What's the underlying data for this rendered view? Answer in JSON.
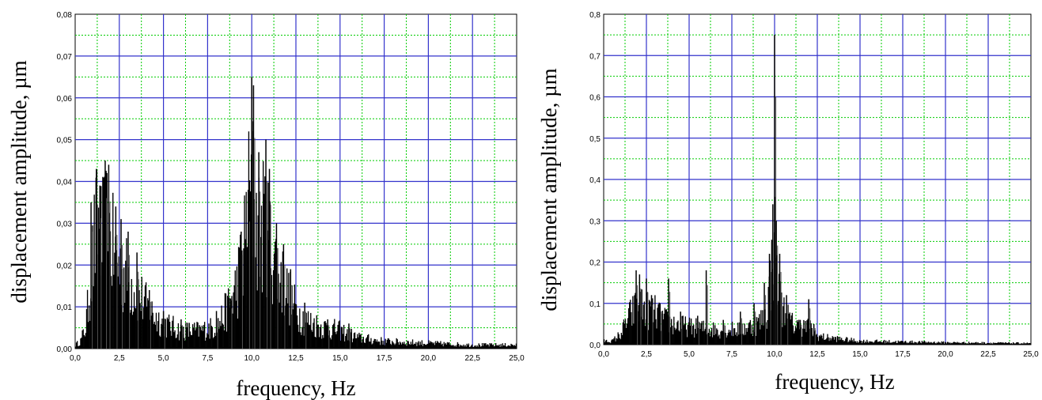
{
  "chart_data": [
    {
      "type": "bar",
      "title": "",
      "xlabel": "frequency, Hz",
      "ylabel": "displacement amplitude, µm",
      "xlim": [
        0,
        25
      ],
      "ylim": [
        0,
        0.08
      ],
      "x_ticks": [
        "0,0",
        "2,5",
        "5,0",
        "7,5",
        "10,0",
        "12,5",
        "15,0",
        "17,5",
        "20,0",
        "22,5",
        "25,0"
      ],
      "y_ticks": [
        "0,00",
        "0,01",
        "0,02",
        "0,03",
        "0,04",
        "0,05",
        "0,06",
        "0,07",
        "0,08"
      ],
      "grid": true,
      "envelope": {
        "x": [
          0,
          0.3,
          0.6,
          0.9,
          1.1,
          1.3,
          1.5,
          1.8,
          2.0,
          2.3,
          2.6,
          3.0,
          3.5,
          4.0,
          4.5,
          5.0,
          5.5,
          6.0,
          7.0,
          8.0,
          8.5,
          9.0,
          9.5,
          9.8,
          10.0,
          10.2,
          10.5,
          10.8,
          11.0,
          11.5,
          12.0,
          12.5,
          13.0,
          14.0,
          15.0,
          15.5,
          16.0,
          17.5,
          20.0,
          22.5,
          25.0
        ],
        "y": [
          0.001,
          0.002,
          0.006,
          0.02,
          0.03,
          0.035,
          0.03,
          0.034,
          0.03,
          0.025,
          0.022,
          0.02,
          0.016,
          0.012,
          0.009,
          0.007,
          0.006,
          0.005,
          0.005,
          0.006,
          0.01,
          0.015,
          0.025,
          0.04,
          0.045,
          0.035,
          0.032,
          0.036,
          0.03,
          0.022,
          0.016,
          0.011,
          0.008,
          0.006,
          0.005,
          0.004,
          0.003,
          0.002,
          0.0015,
          0.001,
          0.001
        ]
      },
      "peaks": [
        {
          "x": 0.9,
          "y": 0.035
        },
        {
          "x": 1.2,
          "y": 0.043
        },
        {
          "x": 1.4,
          "y": 0.039
        },
        {
          "x": 1.7,
          "y": 0.045
        },
        {
          "x": 1.9,
          "y": 0.044
        },
        {
          "x": 2.3,
          "y": 0.034
        },
        {
          "x": 2.6,
          "y": 0.031
        },
        {
          "x": 3.0,
          "y": 0.028
        },
        {
          "x": 3.5,
          "y": 0.023
        },
        {
          "x": 4.2,
          "y": 0.014
        },
        {
          "x": 5.0,
          "y": 0.009
        },
        {
          "x": 6.0,
          "y": 0.007
        },
        {
          "x": 8.0,
          "y": 0.009
        },
        {
          "x": 8.8,
          "y": 0.012
        },
        {
          "x": 9.4,
          "y": 0.028
        },
        {
          "x": 9.8,
          "y": 0.038
        },
        {
          "x": 10.0,
          "y": 0.065
        },
        {
          "x": 10.1,
          "y": 0.063
        },
        {
          "x": 10.4,
          "y": 0.047
        },
        {
          "x": 10.8,
          "y": 0.05
        },
        {
          "x": 11.0,
          "y": 0.043
        },
        {
          "x": 11.4,
          "y": 0.03
        },
        {
          "x": 11.8,
          "y": 0.025
        },
        {
          "x": 12.2,
          "y": 0.019
        },
        {
          "x": 13.0,
          "y": 0.011
        },
        {
          "x": 14.3,
          "y": 0.007
        },
        {
          "x": 15.5,
          "y": 0.006
        }
      ]
    },
    {
      "type": "bar",
      "title": "",
      "xlabel": "frequency, Hz",
      "ylabel": "displacement amplitude, µm",
      "xlim": [
        0,
        25
      ],
      "ylim": [
        0,
        0.8
      ],
      "x_ticks": [
        "0,0",
        "2,5",
        "5,0",
        "7,5",
        "10,0",
        "12,5",
        "15,0",
        "17,5",
        "20,0",
        "22,5",
        "25,0"
      ],
      "y_ticks": [
        "0,0",
        "0,1",
        "0,2",
        "0,3",
        "0,4",
        "0,5",
        "0,6",
        "0,7",
        "0,8"
      ],
      "grid": true,
      "envelope": {
        "x": [
          0,
          0.5,
          1.0,
          1.5,
          2.0,
          2.5,
          3.0,
          3.5,
          4.0,
          5.0,
          6.0,
          7.0,
          8.0,
          8.5,
          9.0,
          9.5,
          9.8,
          10.0,
          10.2,
          10.5,
          11.0,
          11.5,
          12.0,
          12.5,
          13.0,
          14.0,
          15.0,
          17.5,
          20.0,
          22.5,
          25.0
        ],
        "y": [
          0.01,
          0.01,
          0.03,
          0.08,
          0.11,
          0.1,
          0.09,
          0.07,
          0.06,
          0.05,
          0.045,
          0.04,
          0.045,
          0.05,
          0.06,
          0.08,
          0.2,
          0.3,
          0.15,
          0.1,
          0.06,
          0.05,
          0.05,
          0.025,
          0.02,
          0.015,
          0.01,
          0.008,
          0.006,
          0.005,
          0.004
        ]
      },
      "peaks": [
        {
          "x": 1.9,
          "y": 0.18
        },
        {
          "x": 2.1,
          "y": 0.17
        },
        {
          "x": 2.5,
          "y": 0.16
        },
        {
          "x": 2.8,
          "y": 0.12
        },
        {
          "x": 3.3,
          "y": 0.1
        },
        {
          "x": 3.8,
          "y": 0.16
        },
        {
          "x": 4.5,
          "y": 0.08
        },
        {
          "x": 5.5,
          "y": 0.07
        },
        {
          "x": 6.0,
          "y": 0.18
        },
        {
          "x": 7.0,
          "y": 0.06
        },
        {
          "x": 8.0,
          "y": 0.08
        },
        {
          "x": 8.8,
          "y": 0.1
        },
        {
          "x": 9.4,
          "y": 0.15
        },
        {
          "x": 9.7,
          "y": 0.22
        },
        {
          "x": 9.9,
          "y": 0.34
        },
        {
          "x": 10.0,
          "y": 0.75
        },
        {
          "x": 10.1,
          "y": 0.3
        },
        {
          "x": 10.3,
          "y": 0.22
        },
        {
          "x": 10.7,
          "y": 0.12
        },
        {
          "x": 11.5,
          "y": 0.06
        },
        {
          "x": 12.0,
          "y": 0.11
        },
        {
          "x": 12.3,
          "y": 0.05
        }
      ]
    }
  ]
}
